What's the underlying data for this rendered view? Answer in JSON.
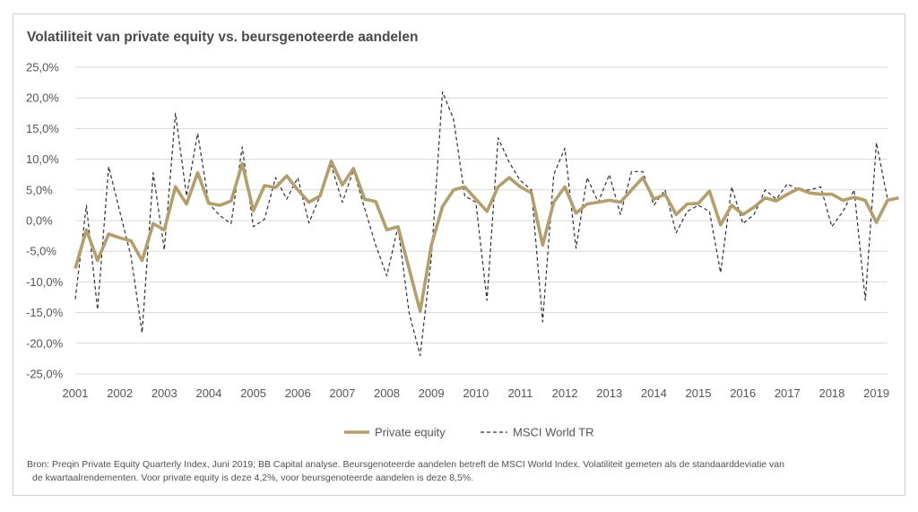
{
  "chart_data": {
    "type": "line",
    "title": "Volatiliteit van private equity vs. beursgenoteerde aandelen",
    "xlabel": "",
    "ylabel": "",
    "ylim": [
      -0.25,
      0.25
    ],
    "y_ticks": [
      0.25,
      0.2,
      0.15,
      0.1,
      0.05,
      0.0,
      -0.05,
      -0.1,
      -0.15,
      -0.2,
      -0.25
    ],
    "y_tick_labels": [
      "25,0%",
      "20,0%",
      "15,0%",
      "10,0%",
      "5,0%",
      "0,0%",
      "-5,0%",
      "-10,0%",
      "-15,0%",
      "-20,0%",
      "-25,0%"
    ],
    "x_tick_labels": [
      "2001",
      "2002",
      "2003",
      "2004",
      "2005",
      "2006",
      "2007",
      "2008",
      "2009",
      "2010",
      "2011",
      "2012",
      "2013",
      "2014",
      "2015",
      "2016",
      "2017",
      "2018",
      "2019"
    ],
    "x_start": 2001.0,
    "x_step": 0.25,
    "grid": true,
    "legend_position": "bottom",
    "series": [
      {
        "name": "Private equity",
        "style": "solid",
        "color": "#b39f6b",
        "values": [
          -0.078,
          -0.015,
          -0.065,
          -0.022,
          -0.028,
          -0.033,
          -0.065,
          -0.005,
          -0.015,
          0.055,
          0.027,
          0.078,
          0.028,
          0.025,
          0.032,
          0.093,
          0.016,
          0.057,
          0.054,
          0.073,
          0.05,
          0.03,
          0.04,
          0.097,
          0.058,
          0.085,
          0.035,
          0.031,
          -0.015,
          -0.01,
          -0.078,
          -0.148,
          -0.04,
          0.023,
          0.05,
          0.055,
          0.035,
          0.015,
          0.055,
          0.07,
          0.055,
          0.045,
          -0.04,
          0.03,
          0.055,
          0.012,
          0.027,
          0.03,
          0.033,
          0.03,
          0.05,
          0.07,
          0.035,
          0.043,
          0.01,
          0.027,
          0.028,
          0.048,
          -0.007,
          0.025,
          0.01,
          0.022,
          0.037,
          0.032,
          0.043,
          0.052,
          0.045,
          0.043,
          0.043,
          0.033,
          0.038,
          0.033,
          -0.003,
          0.033,
          0.037
        ]
      },
      {
        "name": "MSCI World TR",
        "style": "dashed",
        "color": "#2b2f3e",
        "values": [
          -0.128,
          0.025,
          -0.145,
          0.088,
          0.015,
          -0.058,
          -0.183,
          0.078,
          -0.048,
          0.175,
          0.04,
          0.142,
          0.028,
          0.008,
          -0.005,
          0.12,
          -0.01,
          0.002,
          0.07,
          0.035,
          0.07,
          -0.004,
          0.04,
          0.09,
          0.03,
          0.082,
          0.02,
          -0.04,
          -0.09,
          -0.01,
          -0.15,
          -0.22,
          -0.06,
          0.21,
          0.165,
          0.04,
          0.03,
          -0.13,
          0.135,
          0.095,
          0.065,
          0.05,
          -0.165,
          0.075,
          0.118,
          -0.045,
          0.07,
          0.03,
          0.075,
          0.01,
          0.08,
          0.08,
          0.025,
          0.05,
          -0.02,
          0.015,
          0.025,
          0.015,
          -0.085,
          0.055,
          -0.005,
          0.01,
          0.05,
          0.035,
          0.06,
          0.05,
          0.05,
          0.055,
          -0.01,
          0.015,
          0.05,
          -0.13,
          0.127,
          0.035,
          null
        ]
      }
    ],
    "legend": [
      "Private equity",
      "MSCI World TR"
    ]
  },
  "source_line1": "Bron: Preqin Private Equity Quarterly Index, Juni 2019; BB Capital analyse. Beursgenoteerde aandelen betreft de MSCI World Index. Volatiliteit gemeten als de standaarddeviatie van",
  "source_line2": "de kwartaalrendementen. Voor private equity is deze 4,2%, voor beursgenoteerde aandelen is deze 8,5%."
}
